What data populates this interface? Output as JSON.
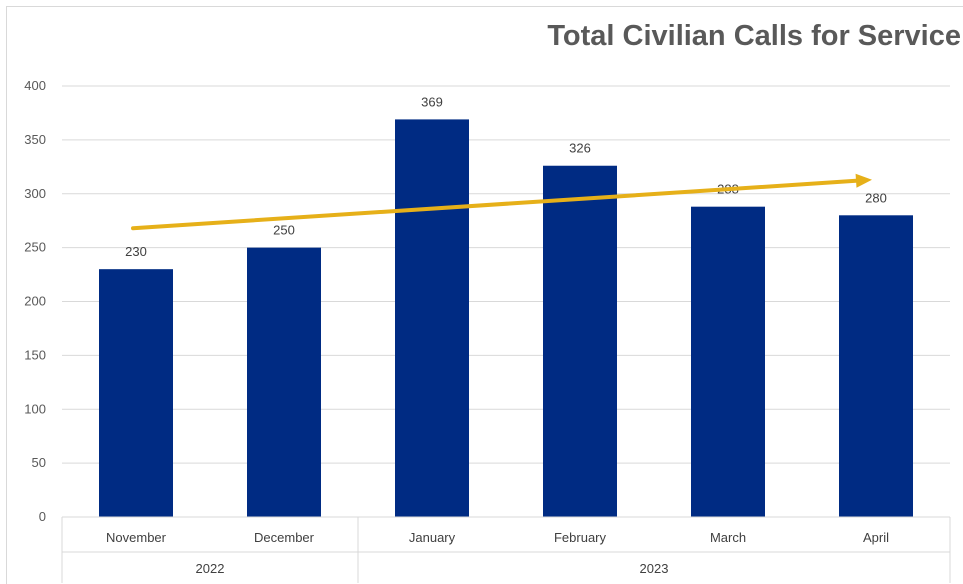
{
  "chart_data": {
    "type": "bar",
    "title": "Total Civilian Calls for Service",
    "categories": [
      "November",
      "December",
      "January",
      "February",
      "March",
      "April"
    ],
    "groups": [
      {
        "label": "2022",
        "span": 2
      },
      {
        "label": "2023",
        "span": 4
      }
    ],
    "values": [
      230,
      250,
      369,
      326,
      288,
      280
    ],
    "data_labels": [
      "230",
      "250",
      "369",
      "326",
      "288",
      "280"
    ],
    "y_ticks": [
      "0",
      "50",
      "100",
      "150",
      "200",
      "250",
      "300",
      "350",
      "400"
    ],
    "ylim": [
      0,
      400
    ],
    "grid": true,
    "colors": {
      "bars": "#002b83",
      "trend": "#e6b019",
      "grid": "#d9d9d9"
    },
    "annotation": {
      "type": "trend-arrow",
      "from_value": 268,
      "to_value": 313
    }
  }
}
